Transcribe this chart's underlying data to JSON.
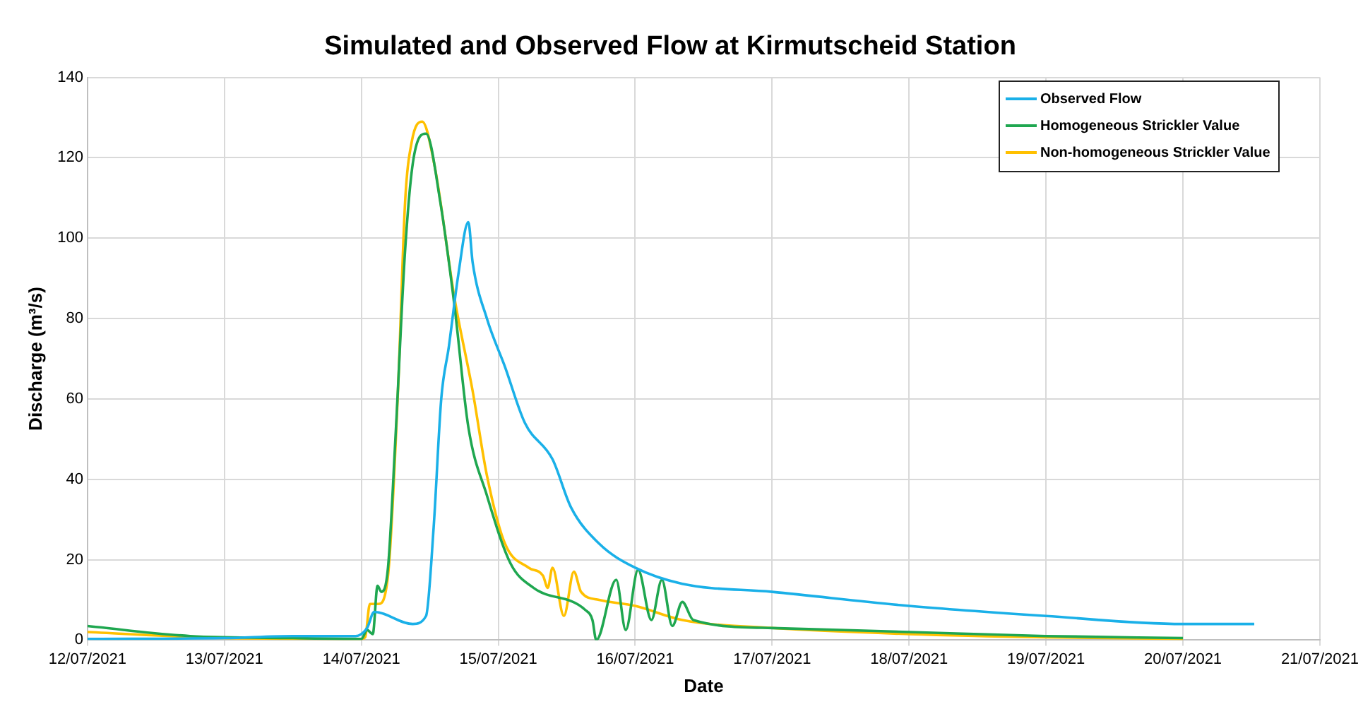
{
  "chart_data": {
    "type": "line",
    "title": "Simulated and Observed Flow at Kirmutscheid Station",
    "xlabel": "Date",
    "ylabel": "Discharge (m³/s)",
    "xlim": [
      "2021-07-12",
      "2021-07-21"
    ],
    "xticks": [
      {
        "value": "2021-07-12",
        "label": "12/07/2021"
      },
      {
        "value": "2021-07-13",
        "label": "13/07/2021"
      },
      {
        "value": "2021-07-14",
        "label": "14/07/2021"
      },
      {
        "value": "2021-07-15",
        "label": "15/07/2021"
      },
      {
        "value": "2021-07-16",
        "label": "16/07/2021"
      },
      {
        "value": "2021-07-17",
        "label": "17/07/2021"
      },
      {
        "value": "2021-07-18",
        "label": "18/07/2021"
      },
      {
        "value": "2021-07-19",
        "label": "19/07/2021"
      },
      {
        "value": "2021-07-20",
        "label": "20/07/2021"
      },
      {
        "value": "2021-07-21",
        "label": "21/07/2021"
      }
    ],
    "ylim": [
      0,
      140
    ],
    "yticks": [
      0,
      20,
      40,
      60,
      80,
      100,
      120,
      140
    ],
    "grid": true,
    "legend": "top right",
    "marker": "none",
    "line_style": "solid",
    "series": [
      {
        "name": "Observed Flow",
        "color": "#1ab0e8",
        "x": [
          "2021-07-12T00:00",
          "2021-07-13T00:00",
          "2021-07-13T12:00",
          "2021-07-13T23:00",
          "2021-07-14T01:00",
          "2021-07-14T02:15",
          "2021-07-14T09:00",
          "2021-07-14T11:20",
          "2021-07-14T12:40",
          "2021-07-14T14:00",
          "2021-07-14T15:20",
          "2021-07-14T17:00",
          "2021-07-14T18:45",
          "2021-07-14T19:30",
          "2021-07-14T22:00",
          "2021-07-15T01:10",
          "2021-07-15T04:40",
          "2021-07-15T09:30",
          "2021-07-15T12:45",
          "2021-07-15T17:40",
          "2021-07-16T00:00",
          "2021-07-16T08:15",
          "2021-07-17T00:00",
          "2021-07-18T00:00",
          "2021-07-19T00:00",
          "2021-07-20T00:00",
          "2021-07-20T12:30"
        ],
        "values": [
          0.3,
          0.5,
          1,
          1,
          3,
          7,
          4,
          6,
          28,
          60,
          73,
          91,
          104,
          94,
          80,
          68,
          54,
          45,
          33,
          24,
          18,
          14,
          12,
          8.5,
          6,
          4,
          4
        ]
      },
      {
        "name": "Homogeneous Strickler Value",
        "color": "#1fa750",
        "x": [
          "2021-07-12T00:00",
          "2021-07-12T18:00",
          "2021-07-13T12:00",
          "2021-07-14T00:00",
          "2021-07-14T01:00",
          "2021-07-14T02:00",
          "2021-07-14T02:50",
          "2021-07-14T03:30",
          "2021-07-14T04:40",
          "2021-07-14T06:00",
          "2021-07-14T07:40",
          "2021-07-14T09:10",
          "2021-07-14T11:20",
          "2021-07-14T13:50",
          "2021-07-14T16:20",
          "2021-07-14T18:45",
          "2021-07-14T22:00",
          "2021-07-15T02:10",
          "2021-07-15T06:10",
          "2021-07-15T15:15",
          "2021-07-15T16:30",
          "2021-07-15T17:10",
          "2021-07-15T20:40",
          "2021-07-15T22:20",
          "2021-07-16T00:30",
          "2021-07-16T02:50",
          "2021-07-16T04:40",
          "2021-07-16T06:30",
          "2021-07-16T08:15",
          "2021-07-16T10:10",
          "2021-07-17T00:00",
          "2021-07-18T00:00",
          "2021-07-19T00:00",
          "2021-07-20T00:00"
        ],
        "values": [
          3.5,
          1,
          0.5,
          0.3,
          2.5,
          1.5,
          13.5,
          12,
          18,
          51,
          97,
          120,
          126,
          109,
          83,
          53,
          36,
          19,
          13,
          7.5,
          5,
          0,
          15,
          2.5,
          17.5,
          5,
          15,
          3.5,
          9.5,
          5,
          3,
          2,
          1,
          0.5
        ]
      },
      {
        "name": "Non-homogeneous Strickler Value",
        "color": "#ffc000",
        "x": [
          "2021-07-12T00:00",
          "2021-07-13T00:00",
          "2021-07-14T00:00",
          "2021-07-14T00:40",
          "2021-07-14T01:30",
          "2021-07-14T03:00",
          "2021-07-14T04:40",
          "2021-07-14T06:25",
          "2021-07-14T07:40",
          "2021-07-14T08:50",
          "2021-07-14T10:40",
          "2021-07-14T12:50",
          "2021-07-14T16:20",
          "2021-07-14T19:30",
          "2021-07-14T22:00",
          "2021-07-15T01:10",
          "2021-07-15T05:20",
          "2021-07-15T07:50",
          "2021-07-15T08:40",
          "2021-07-15T09:30",
          "2021-07-15T11:30",
          "2021-07-15T13:15",
          "2021-07-15T14:30",
          "2021-07-15T17:40",
          "2021-07-16T00:00",
          "2021-07-16T08:15",
          "2021-07-17T00:00",
          "2021-07-18T00:00",
          "2021-07-19T00:00",
          "2021-07-20T00:00"
        ],
        "values": [
          2,
          0.5,
          0.3,
          0.7,
          9,
          9,
          16,
          62,
          109,
          124,
          129,
          118,
          85,
          62,
          41,
          24,
          18,
          16,
          13,
          18,
          6,
          17,
          12,
          10,
          8.5,
          5,
          3,
          1.5,
          0.7,
          0.3
        ]
      }
    ]
  }
}
